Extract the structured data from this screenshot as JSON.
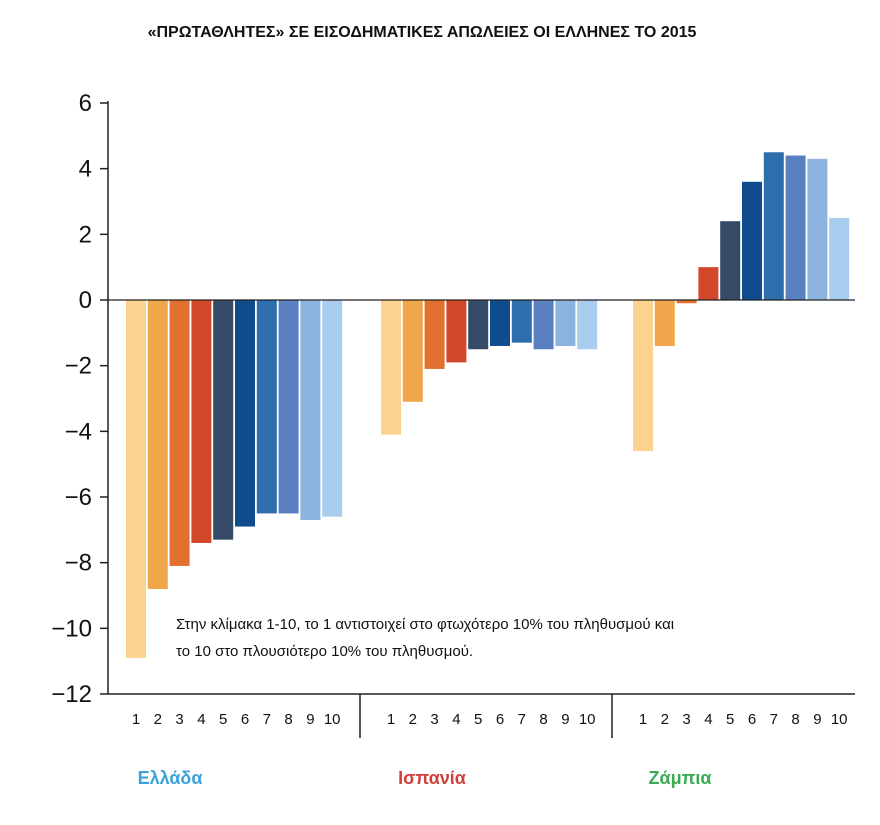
{
  "chart_data": {
    "type": "bar",
    "title": "«ΠΡΩΤΑΘΛΗΤΕΣ» ΣΕ ΕΙΣΟΔΗΜΑΤΙΚΕΣ ΑΠΩΛΕΙΕΣ ΟΙ ΕΛΛΗΝΕΣ ΤΟ 2015",
    "ylim": [
      -12,
      6
    ],
    "yticks": [
      6,
      4,
      2,
      0,
      -2,
      -4,
      -6,
      -8,
      -10,
      -12
    ],
    "ytick_labels": [
      "6",
      "4",
      "2",
      "0",
      "−2",
      "−4",
      "−6",
      "−8",
      "−10",
      "−12"
    ],
    "categories": [
      "1",
      "2",
      "3",
      "4",
      "5",
      "6",
      "7",
      "8",
      "9",
      "10"
    ],
    "colors": [
      "#fbd38f",
      "#f0a64a",
      "#e2712f",
      "#d1482a",
      "#344a66",
      "#0f4c8c",
      "#2e6ead",
      "#5b80c2",
      "#8cb2e0",
      "#a9cdef"
    ],
    "groups": [
      {
        "name": "Ελλάδα",
        "label_color": "#3aa3dc",
        "values": [
          -10.9,
          -8.8,
          -8.1,
          -7.4,
          -7.3,
          -6.9,
          -6.5,
          -6.5,
          -6.7,
          -6.6
        ]
      },
      {
        "name": "Ισπανία",
        "label_color": "#d1403a",
        "values": [
          -4.1,
          -3.1,
          -2.1,
          -1.9,
          -1.5,
          -1.4,
          -1.3,
          -1.5,
          -1.4,
          -1.5
        ]
      },
      {
        "name": "Ζάμπια",
        "label_color": "#3aaa55",
        "values": [
          -4.6,
          -1.4,
          -0.1,
          1.0,
          2.4,
          3.6,
          4.5,
          4.4,
          4.3,
          2.5
        ]
      }
    ],
    "annotation_lines": [
      "Στην κλίμακα 1-10, το 1 αντιστοιχεί στο φτωχότερο 10% του πληθυσμού και",
      "το 10 στο πλουσιότερο 10% του πληθυσμού."
    ]
  }
}
